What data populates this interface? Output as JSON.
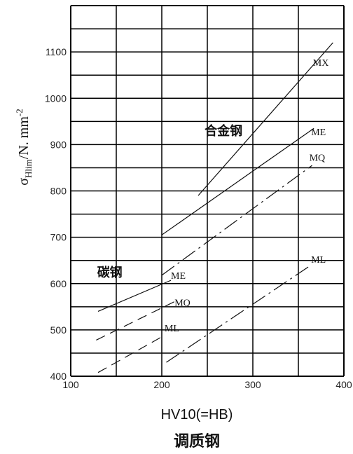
{
  "chart_data": {
    "type": "line",
    "caption": "调质钢",
    "xlabel": "HV10(=HB)",
    "ylabel": {
      "sigma": "σ",
      "sub": "Hlim",
      "unit": "/N. mm",
      "sup": "-2"
    },
    "xlim": [
      100,
      400
    ],
    "ylim": [
      400,
      1200
    ],
    "xticks": [
      100,
      200,
      300,
      400
    ],
    "yticks": [
      400,
      500,
      600,
      700,
      800,
      900,
      1000,
      1100
    ],
    "grid": true,
    "groups": [
      {
        "name": "合金钢",
        "at": [
          247,
          920
        ]
      },
      {
        "name": "碳钢",
        "at": [
          129,
          615
        ]
      }
    ],
    "series": [
      {
        "name": "MX",
        "group": "合金钢",
        "style": "solid",
        "x": [
          240,
          388
        ],
        "y": [
          790,
          1120
        ],
        "label_at": [
          366,
          1070
        ]
      },
      {
        "name": "ME",
        "group": "合金钢",
        "style": "solid",
        "x": [
          200,
          367
        ],
        "y": [
          705,
          935
        ],
        "label_at": [
          364,
          920
        ]
      },
      {
        "name": "MQ",
        "group": "合金钢",
        "style": "dashdot",
        "x": [
          200,
          365
        ],
        "y": [
          618,
          855
        ],
        "label_at": [
          362,
          865
        ]
      },
      {
        "name": "ML",
        "group": "合金钢",
        "style": "dashdot",
        "x": [
          205,
          364
        ],
        "y": [
          430,
          640
        ],
        "label_at": [
          364,
          645
        ]
      },
      {
        "name": "ME",
        "group": "碳钢",
        "style": "solid",
        "x": [
          130,
          210
        ],
        "y": [
          540,
          607
        ],
        "label_at": [
          210,
          610
        ]
      },
      {
        "name": "MQ",
        "group": "碳钢",
        "style": "dashed",
        "x": [
          128,
          215
        ],
        "y": [
          478,
          562
        ],
        "label_at": [
          214,
          552
        ]
      },
      {
        "name": "ML",
        "group": "碳钢",
        "style": "dashed",
        "x": [
          130,
          200
        ],
        "y": [
          408,
          485
        ],
        "label_at": [
          203,
          497
        ]
      }
    ]
  }
}
